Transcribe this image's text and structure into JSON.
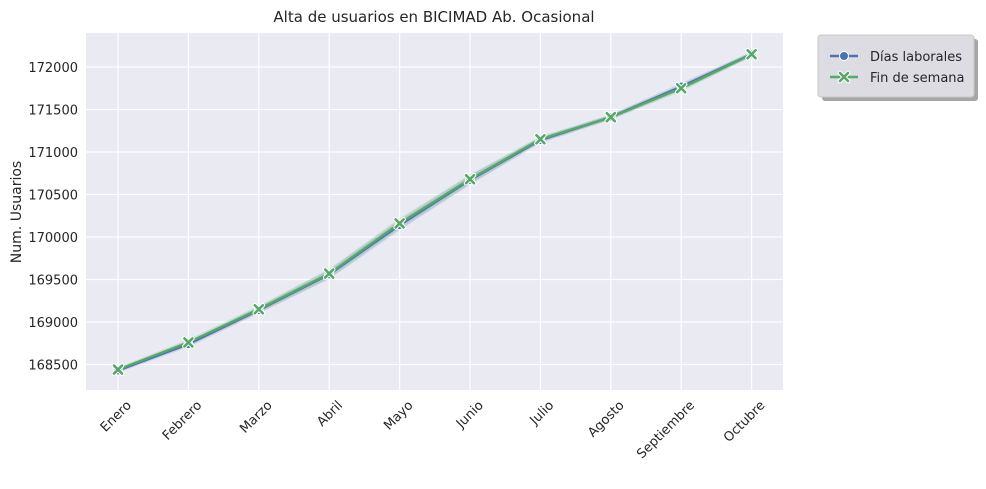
{
  "chart_data": {
    "type": "line",
    "title": "Alta de usuarios en BICIMAD Ab. Ocasional",
    "xlabel": "",
    "ylabel": "Num. Usuarios",
    "categories": [
      "Enero",
      "Febrero",
      "Marzo",
      "Abril",
      "Mayo",
      "Junio",
      "Julio",
      "Agosto",
      "Septiembre",
      "Octubre"
    ],
    "ylim": [
      168200,
      172400
    ],
    "yticks": [
      168500,
      169000,
      169500,
      170000,
      170500,
      171000,
      171500,
      172000
    ],
    "grid": true,
    "legend_position": "outside-top-right",
    "series": [
      {
        "name": "Días laborales",
        "marker": "circle",
        "color": "#4c72b0",
        "values": [
          168430,
          168740,
          169140,
          169560,
          170140,
          170670,
          171140,
          171410,
          171770,
          172150
        ]
      },
      {
        "name": "Fin de semana",
        "marker": "x",
        "color": "#55a868",
        "values": [
          168440,
          168760,
          169150,
          169570,
          170160,
          170680,
          171150,
          171410,
          171750,
          172150
        ]
      }
    ],
    "colors": {
      "plot_background": "#eaeaf2",
      "grid": "#ffffff",
      "legend_background": "#dcdce2"
    }
  }
}
